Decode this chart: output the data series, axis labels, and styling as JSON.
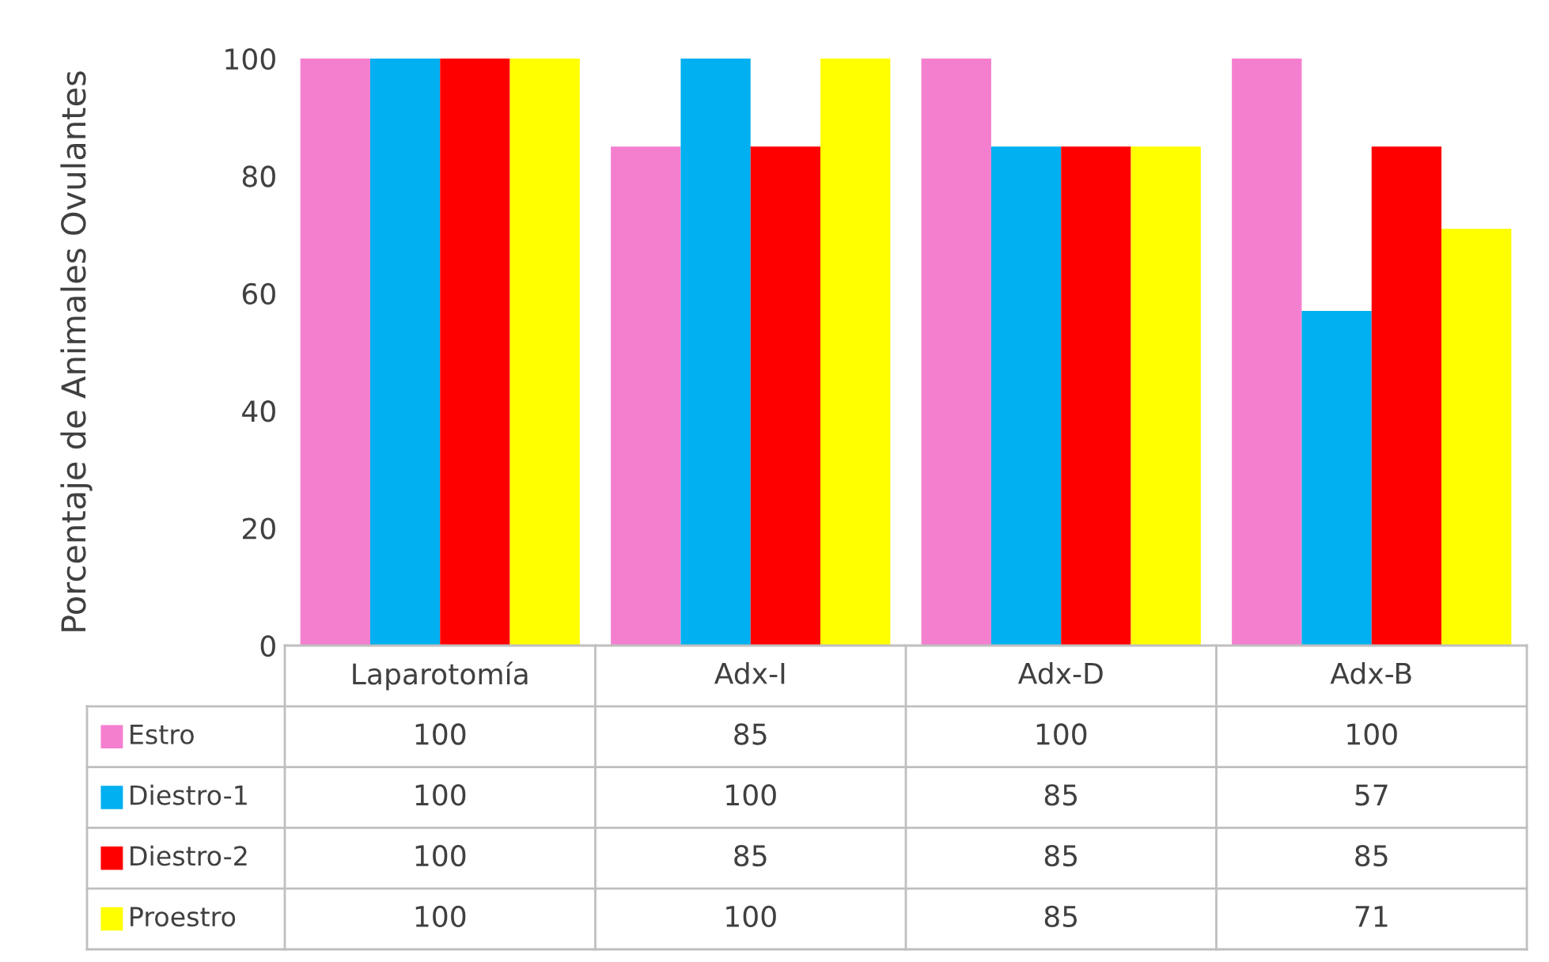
{
  "chart_data": {
    "type": "bar",
    "ylabel": "Porcentaje de Animales Ovulantes",
    "categories": [
      "Laparotomía",
      "Adx-I",
      "Adx-D",
      "Adx-B"
    ],
    "ylim": [
      0,
      100
    ],
    "yticks": [
      0,
      20,
      40,
      60,
      80,
      100
    ],
    "grid": false,
    "data_labels": true,
    "legend": "bottom left",
    "series": [
      {
        "name": "Estro",
        "color": "#f47fcf",
        "values": [
          100,
          85,
          100,
          100
        ]
      },
      {
        "name": "Diestro-1",
        "color": "#00b0f0",
        "values": [
          100,
          100,
          85,
          57
        ]
      },
      {
        "name": "Diestro-2",
        "color": "#ff0000",
        "values": [
          100,
          85,
          85,
          85
        ]
      },
      {
        "name": "Proestro",
        "color": "#ffff00",
        "values": [
          100,
          100,
          85,
          71
        ]
      }
    ]
  }
}
